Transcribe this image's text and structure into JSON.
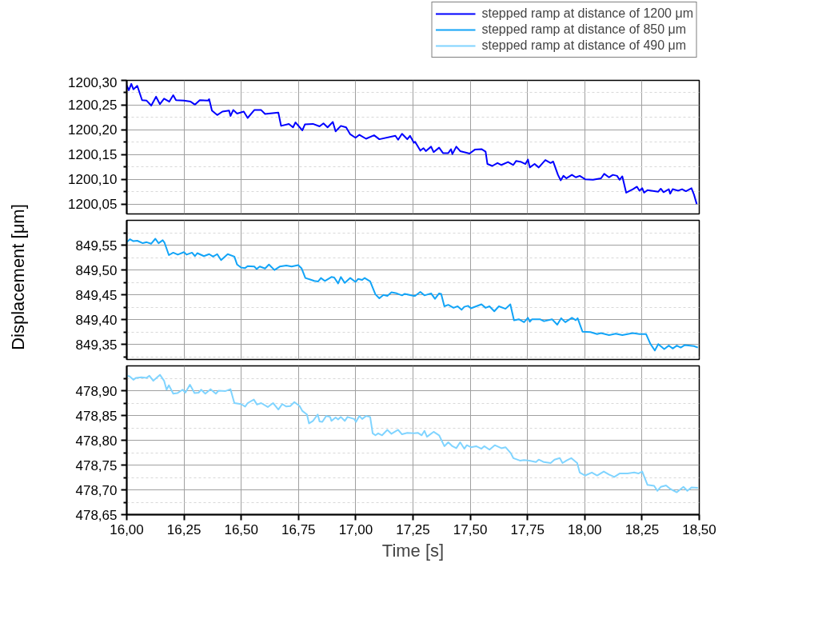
{
  "chart_data": [
    {
      "type": "line",
      "legend": "top right",
      "grid": true,
      "tick_labels": "y",
      "xlim": [
        16.0,
        18.5
      ],
      "xticks": [
        16.0,
        16.25,
        16.5,
        16.75,
        17.0,
        17.25,
        17.5,
        17.75,
        18.0,
        18.25,
        18.5
      ],
      "ylim": [
        1200.03,
        1200.3
      ],
      "yticks": [
        {
          "value": 1200.05,
          "label": "1200,05"
        },
        {
          "value": 1200.1,
          "label": "1200,10"
        },
        {
          "value": 1200.15,
          "label": "1200,15"
        },
        {
          "value": 1200.2,
          "label": "1200,20"
        },
        {
          "value": 1200.25,
          "label": "1200,25"
        },
        {
          "value": 1200.3,
          "label": "1200,30"
        },
        {
          "value": 1200.075,
          "label": null
        },
        {
          "value": 1200.125,
          "label": null
        },
        {
          "value": 1200.175,
          "label": null
        },
        {
          "value": 1200.225,
          "label": null
        },
        {
          "value": 1200.275,
          "label": null
        }
      ],
      "series": [
        {
          "name": "stepped ramp at distance of 1200 μm",
          "color": "#0000ff",
          "x": [
            16.0,
            16.009,
            16.02,
            16.029,
            16.046,
            16.067,
            16.087,
            16.107,
            16.128,
            16.145,
            16.163,
            16.186,
            16.203,
            16.215,
            16.25,
            16.279,
            16.298,
            16.319,
            16.354,
            16.36,
            16.372,
            16.395,
            16.418,
            16.447,
            16.453,
            16.465,
            16.482,
            16.511,
            16.528,
            16.557,
            16.587,
            16.604,
            16.662,
            16.674,
            16.708,
            16.726,
            16.737,
            16.767,
            16.778,
            16.813,
            16.842,
            16.859,
            16.877,
            16.9,
            16.912,
            16.935,
            16.958,
            16.976,
            16.999,
            17.016,
            17.045,
            17.08,
            17.103,
            17.173,
            17.185,
            17.202,
            17.225,
            17.237,
            17.254,
            17.259,
            17.282,
            17.296,
            17.306,
            17.329,
            17.34,
            17.364,
            17.381,
            17.404,
            17.416,
            17.422,
            17.439,
            17.456,
            17.497,
            17.52,
            17.549,
            17.567,
            17.575,
            17.596,
            17.619,
            17.636,
            17.665,
            17.688,
            17.7,
            17.723,
            17.741,
            17.752,
            17.76,
            17.781,
            17.799,
            17.828,
            17.851,
            17.862,
            17.883,
            17.895,
            17.907,
            17.92,
            17.944,
            17.961,
            17.978,
            18.002,
            18.036,
            18.071,
            18.085,
            18.106,
            18.123,
            18.141,
            18.152,
            18.164,
            18.181,
            18.21,
            18.228,
            18.239,
            18.251,
            18.259,
            18.274,
            18.321,
            18.332,
            18.344,
            18.367,
            18.373,
            18.384,
            18.408,
            18.425,
            18.442,
            18.466,
            18.477,
            18.489
          ],
          "values": [
            1200.29,
            1200.28,
            1200.293,
            1200.282,
            1200.289,
            1200.26,
            1200.259,
            1200.249,
            1200.267,
            1200.252,
            1200.263,
            1200.257,
            1200.27,
            1200.26,
            1200.259,
            1200.257,
            1200.251,
            1200.26,
            1200.259,
            1200.262,
            1200.239,
            1200.23,
            1200.237,
            1200.239,
            1200.228,
            1200.24,
            1200.233,
            1200.237,
            1200.224,
            1200.24,
            1200.24,
            1200.232,
            1200.235,
            1200.208,
            1200.212,
            1200.205,
            1200.215,
            1200.199,
            1200.211,
            1200.212,
            1200.207,
            1200.213,
            1200.205,
            1200.216,
            1200.197,
            1200.208,
            1200.205,
            1200.191,
            1200.184,
            1200.19,
            1200.182,
            1200.189,
            1200.181,
            1200.188,
            1200.18,
            1200.192,
            1200.181,
            1200.188,
            1200.174,
            1200.176,
            1200.158,
            1200.163,
            1200.157,
            1200.166,
            1200.155,
            1200.164,
            1200.153,
            1200.153,
            1200.161,
            1200.151,
            1200.166,
            1200.157,
            1200.152,
            1200.16,
            1200.161,
            1200.156,
            1200.131,
            1200.127,
            1200.133,
            1200.129,
            1200.135,
            1200.129,
            1200.137,
            1200.135,
            1200.131,
            1200.14,
            1200.124,
            1200.131,
            1200.124,
            1200.139,
            1200.133,
            1200.136,
            1200.109,
            1200.098,
            1200.107,
            1200.102,
            1200.109,
            1200.104,
            1200.107,
            1200.1,
            1200.099,
            1200.102,
            1200.111,
            1200.104,
            1200.109,
            1200.107,
            1200.099,
            1200.106,
            1200.073,
            1200.08,
            1200.085,
            1200.077,
            1200.082,
            1200.073,
            1200.078,
            1200.075,
            1200.081,
            1200.074,
            1200.08,
            1200.071,
            1200.08,
            1200.077,
            1200.08,
            1200.076,
            1200.082,
            1200.069,
            1200.05
          ]
        }
      ]
    },
    {
      "type": "line",
      "grid": true,
      "tick_labels": "y",
      "ylabel": "Displacement [μm]",
      "xlim": [
        16.0,
        18.5
      ],
      "xticks": [
        16.0,
        16.25,
        16.5,
        16.75,
        17.0,
        17.25,
        17.5,
        17.75,
        18.0,
        18.25,
        18.5
      ],
      "ylim": [
        849.32,
        849.6
      ],
      "yticks": [
        {
          "value": 849.35,
          "label": "849,35"
        },
        {
          "value": 849.4,
          "label": "849,40"
        },
        {
          "value": 849.45,
          "label": "849,45"
        },
        {
          "value": 849.5,
          "label": "849,50"
        },
        {
          "value": 849.55,
          "label": "849,55"
        },
        {
          "value": 849.325,
          "label": null
        },
        {
          "value": 849.375,
          "label": null
        },
        {
          "value": 849.425,
          "label": null
        },
        {
          "value": 849.475,
          "label": null
        },
        {
          "value": 849.525,
          "label": null
        },
        {
          "value": 849.575,
          "label": null
        }
      ],
      "series": [
        {
          "name": "stepped ramp at distance of 850 μm",
          "color": "#12a4f7",
          "x": [
            16.0,
            16.014,
            16.029,
            16.046,
            16.07,
            16.087,
            16.107,
            16.125,
            16.139,
            16.157,
            16.165,
            16.184,
            16.203,
            16.223,
            16.25,
            16.261,
            16.285,
            16.298,
            16.308,
            16.337,
            16.36,
            16.377,
            16.395,
            16.412,
            16.441,
            16.47,
            16.482,
            16.499,
            16.517,
            16.528,
            16.557,
            16.567,
            16.581,
            16.604,
            16.621,
            16.645,
            16.668,
            16.697,
            16.72,
            16.749,
            16.764,
            16.78,
            16.801,
            16.819,
            16.836,
            16.848,
            16.865,
            16.894,
            16.906,
            16.923,
            16.935,
            16.952,
            16.976,
            16.999,
            17.01,
            17.028,
            17.039,
            17.063,
            17.086,
            17.103,
            17.121,
            17.138,
            17.156,
            17.179,
            17.202,
            17.214,
            17.254,
            17.259,
            17.282,
            17.3,
            17.329,
            17.346,
            17.364,
            17.373,
            17.387,
            17.404,
            17.427,
            17.445,
            17.462,
            17.474,
            17.491,
            17.503,
            17.526,
            17.549,
            17.567,
            17.584,
            17.605,
            17.625,
            17.654,
            17.675,
            17.691,
            17.712,
            17.735,
            17.752,
            17.76,
            17.77,
            17.804,
            17.822,
            17.857,
            17.88,
            17.897,
            17.915,
            17.944,
            17.961,
            17.969,
            17.99,
            18.025,
            18.054,
            18.071,
            18.106,
            18.135,
            18.164,
            18.21,
            18.239,
            18.268,
            18.286,
            18.306,
            18.321,
            18.347,
            18.367,
            18.384,
            18.402,
            18.419,
            18.437,
            18.477,
            18.494
          ],
          "values": [
            849.556,
            849.562,
            849.558,
            849.559,
            849.554,
            849.556,
            849.553,
            849.563,
            849.554,
            849.56,
            849.555,
            849.53,
            849.535,
            849.531,
            849.536,
            849.531,
            849.535,
            849.528,
            849.534,
            849.528,
            849.532,
            849.527,
            849.532,
            849.52,
            849.532,
            849.527,
            849.511,
            849.505,
            849.504,
            849.508,
            849.507,
            849.502,
            849.507,
            849.503,
            849.511,
            849.5,
            849.507,
            849.509,
            849.507,
            849.51,
            849.503,
            849.484,
            849.481,
            849.478,
            849.477,
            849.484,
            849.478,
            849.486,
            849.485,
            849.473,
            849.486,
            849.474,
            849.484,
            849.476,
            849.482,
            849.48,
            849.484,
            849.477,
            849.451,
            849.443,
            849.45,
            849.448,
            849.455,
            849.453,
            849.449,
            849.452,
            849.448,
            849.448,
            849.456,
            849.449,
            849.453,
            849.442,
            849.453,
            849.452,
            849.427,
            849.43,
            849.424,
            849.427,
            849.42,
            849.426,
            849.428,
            849.423,
            849.427,
            849.431,
            849.424,
            849.427,
            849.417,
            849.427,
            849.422,
            849.431,
            849.399,
            849.401,
            849.395,
            849.404,
            849.396,
            849.401,
            849.401,
            849.397,
            849.401,
            849.39,
            849.403,
            849.395,
            849.404,
            849.399,
            849.403,
            849.376,
            849.375,
            849.371,
            849.373,
            849.369,
            849.372,
            849.369,
            849.373,
            849.371,
            849.371,
            849.352,
            849.338,
            849.351,
            849.341,
            849.348,
            849.342,
            849.348,
            849.344,
            849.349,
            849.347,
            849.344
          ]
        }
      ]
    },
    {
      "type": "line",
      "grid": true,
      "xlabel": "Time [s]",
      "xlim": [
        16.0,
        18.5
      ],
      "xticks": [
        {
          "value": 16.0,
          "label": "16,00"
        },
        {
          "value": 16.25,
          "label": "16,25"
        },
        {
          "value": 16.5,
          "label": "16,50"
        },
        {
          "value": 16.75,
          "label": "16,75"
        },
        {
          "value": 17.0,
          "label": "17,00"
        },
        {
          "value": 17.25,
          "label": "17,25"
        },
        {
          "value": 17.5,
          "label": "17,50"
        },
        {
          "value": 17.75,
          "label": "17,75"
        },
        {
          "value": 18.0,
          "label": "18,00"
        },
        {
          "value": 18.25,
          "label": "18,25"
        },
        {
          "value": 18.5,
          "label": "18,50"
        }
      ],
      "ylim": [
        478.65,
        478.95
      ],
      "yticks": [
        {
          "value": 478.65,
          "label": "478,65"
        },
        {
          "value": 478.7,
          "label": "478,70"
        },
        {
          "value": 478.75,
          "label": "478,75"
        },
        {
          "value": 478.8,
          "label": "478,80"
        },
        {
          "value": 478.85,
          "label": "478,85"
        },
        {
          "value": 478.9,
          "label": "478,90"
        },
        {
          "value": 478.675,
          "label": null
        },
        {
          "value": 478.725,
          "label": null
        },
        {
          "value": 478.775,
          "label": null
        },
        {
          "value": 478.825,
          "label": null
        },
        {
          "value": 478.875,
          "label": null
        },
        {
          "value": 478.925,
          "label": null
        }
      ],
      "series": [
        {
          "name": "stepped ramp at distance of 490 μm",
          "color": "#80d4ff",
          "x": [
            16.0,
            16.012,
            16.029,
            16.041,
            16.064,
            16.087,
            16.099,
            16.116,
            16.145,
            16.163,
            16.174,
            16.184,
            16.203,
            16.221,
            16.244,
            16.256,
            16.276,
            16.296,
            16.314,
            16.325,
            16.343,
            16.366,
            16.389,
            16.401,
            16.43,
            16.453,
            16.47,
            16.499,
            16.517,
            16.528,
            16.555,
            16.569,
            16.587,
            16.616,
            16.639,
            16.662,
            16.679,
            16.697,
            16.714,
            16.732,
            16.755,
            16.767,
            16.787,
            16.796,
            16.813,
            16.834,
            16.842,
            16.854,
            16.871,
            16.888,
            16.894,
            16.912,
            16.923,
            16.935,
            16.952,
            16.964,
            16.993,
            17.001,
            17.016,
            17.028,
            17.045,
            17.063,
            17.074,
            17.086,
            17.098,
            17.115,
            17.138,
            17.156,
            17.185,
            17.202,
            17.225,
            17.254,
            17.271,
            17.288,
            17.3,
            17.311,
            17.34,
            17.364,
            17.387,
            17.404,
            17.422,
            17.439,
            17.456,
            17.474,
            17.485,
            17.503,
            17.526,
            17.549,
            17.561,
            17.584,
            17.607,
            17.636,
            17.654,
            17.677,
            17.688,
            17.717,
            17.735,
            17.758,
            17.787,
            17.799,
            17.822,
            17.851,
            17.868,
            17.891,
            17.903,
            17.92,
            17.941,
            17.967,
            17.978,
            18.002,
            18.031,
            18.054,
            18.083,
            18.106,
            18.129,
            18.152,
            18.187,
            18.216,
            18.234,
            18.251,
            18.274,
            18.303,
            18.317,
            18.332,
            18.355,
            18.373,
            18.402,
            18.431,
            18.448,
            18.466,
            18.494
          ],
          "values": [
            478.93,
            478.929,
            478.922,
            478.926,
            478.927,
            478.926,
            478.93,
            478.92,
            478.932,
            478.92,
            478.902,
            478.911,
            478.894,
            478.895,
            478.902,
            478.896,
            478.912,
            478.895,
            478.896,
            478.902,
            478.894,
            478.903,
            478.894,
            478.9,
            478.899,
            478.903,
            478.875,
            478.873,
            478.868,
            478.875,
            478.882,
            478.872,
            478.875,
            478.867,
            478.875,
            478.862,
            478.873,
            478.868,
            478.869,
            478.877,
            478.869,
            478.859,
            478.852,
            478.834,
            478.839,
            478.852,
            478.838,
            478.837,
            478.849,
            478.847,
            478.839,
            478.846,
            478.842,
            478.847,
            478.839,
            478.847,
            478.843,
            478.837,
            478.849,
            478.843,
            478.849,
            478.847,
            478.814,
            478.81,
            478.814,
            478.81,
            478.821,
            478.813,
            478.821,
            478.812,
            478.815,
            478.814,
            478.815,
            478.81,
            478.819,
            478.807,
            478.817,
            478.81,
            478.788,
            478.796,
            478.788,
            478.784,
            478.796,
            478.783,
            478.79,
            478.786,
            478.788,
            478.783,
            478.788,
            478.781,
            478.79,
            478.784,
            478.786,
            478.774,
            478.764,
            478.759,
            478.76,
            478.759,
            478.756,
            478.761,
            478.756,
            478.754,
            478.761,
            478.764,
            478.754,
            478.759,
            478.764,
            478.754,
            478.735,
            478.729,
            478.735,
            478.729,
            478.737,
            478.731,
            478.726,
            478.733,
            478.733,
            478.735,
            478.733,
            478.737,
            478.71,
            478.708,
            478.698,
            478.706,
            478.709,
            478.702,
            478.695,
            478.706,
            478.698,
            478.705,
            478.704
          ]
        }
      ]
    }
  ]
}
